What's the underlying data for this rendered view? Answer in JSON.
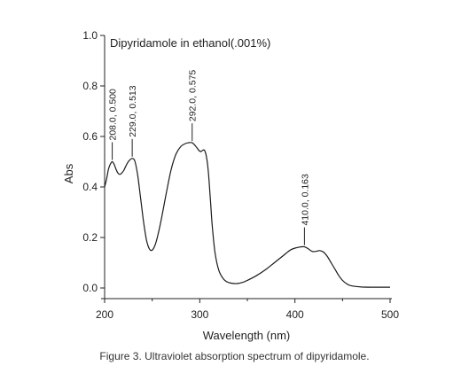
{
  "chart_data": {
    "type": "line",
    "title": "Dipyridamole in ethanol(.001%)",
    "xlabel": "Wavelength (nm)",
    "ylabel": "Abs",
    "xlim": [
      200,
      500
    ],
    "ylim": [
      0.0,
      1.0
    ],
    "xticks": [
      "200",
      "300",
      "400",
      "500"
    ],
    "yticks": [
      "0.0",
      "0.2",
      "0.4",
      "0.6",
      "0.8",
      "1.0"
    ],
    "grid": false,
    "series": [
      {
        "x": [
          200,
          202,
          204,
          206,
          208,
          210,
          212,
          214,
          216,
          218,
          220,
          222,
          224,
          226,
          229,
          232,
          235,
          238,
          241,
          244,
          247,
          250,
          253,
          256,
          260,
          265,
          270,
          275,
          280,
          285,
          288,
          292,
          296,
          299,
          301,
          303,
          305,
          307,
          309,
          311,
          313,
          316,
          320,
          325,
          330,
          335,
          340,
          345,
          350,
          360,
          370,
          380,
          390,
          395,
          400,
          405,
          410,
          414,
          418,
          422,
          426,
          430,
          434,
          438,
          442,
          446,
          450,
          455,
          460,
          470,
          480,
          490,
          500
        ],
        "y": [
          0.4,
          0.43,
          0.47,
          0.49,
          0.5,
          0.49,
          0.47,
          0.455,
          0.45,
          0.455,
          0.465,
          0.48,
          0.495,
          0.505,
          0.513,
          0.5,
          0.44,
          0.35,
          0.26,
          0.19,
          0.155,
          0.15,
          0.17,
          0.21,
          0.28,
          0.38,
          0.47,
          0.53,
          0.56,
          0.572,
          0.575,
          0.575,
          0.56,
          0.545,
          0.54,
          0.545,
          0.545,
          0.52,
          0.46,
          0.36,
          0.25,
          0.14,
          0.07,
          0.035,
          0.022,
          0.018,
          0.018,
          0.022,
          0.03,
          0.05,
          0.075,
          0.105,
          0.135,
          0.15,
          0.158,
          0.162,
          0.163,
          0.155,
          0.145,
          0.145,
          0.148,
          0.142,
          0.125,
          0.1,
          0.075,
          0.05,
          0.03,
          0.015,
          0.008,
          0.004,
          0.003,
          0.003,
          0.003
        ]
      }
    ],
    "annotations": [
      {
        "x": 208,
        "y": 0.5,
        "text": "208.0, 0.500"
      },
      {
        "x": 229,
        "y": 0.513,
        "text": "229.0, 0.513"
      },
      {
        "x": 292,
        "y": 0.575,
        "text": "292.0, 0.575"
      },
      {
        "x": 410,
        "y": 0.163,
        "text": "410.0, 0.163"
      }
    ]
  },
  "caption": "Figure 3.  Ultraviolet absorption spectrum of dipyridamole."
}
